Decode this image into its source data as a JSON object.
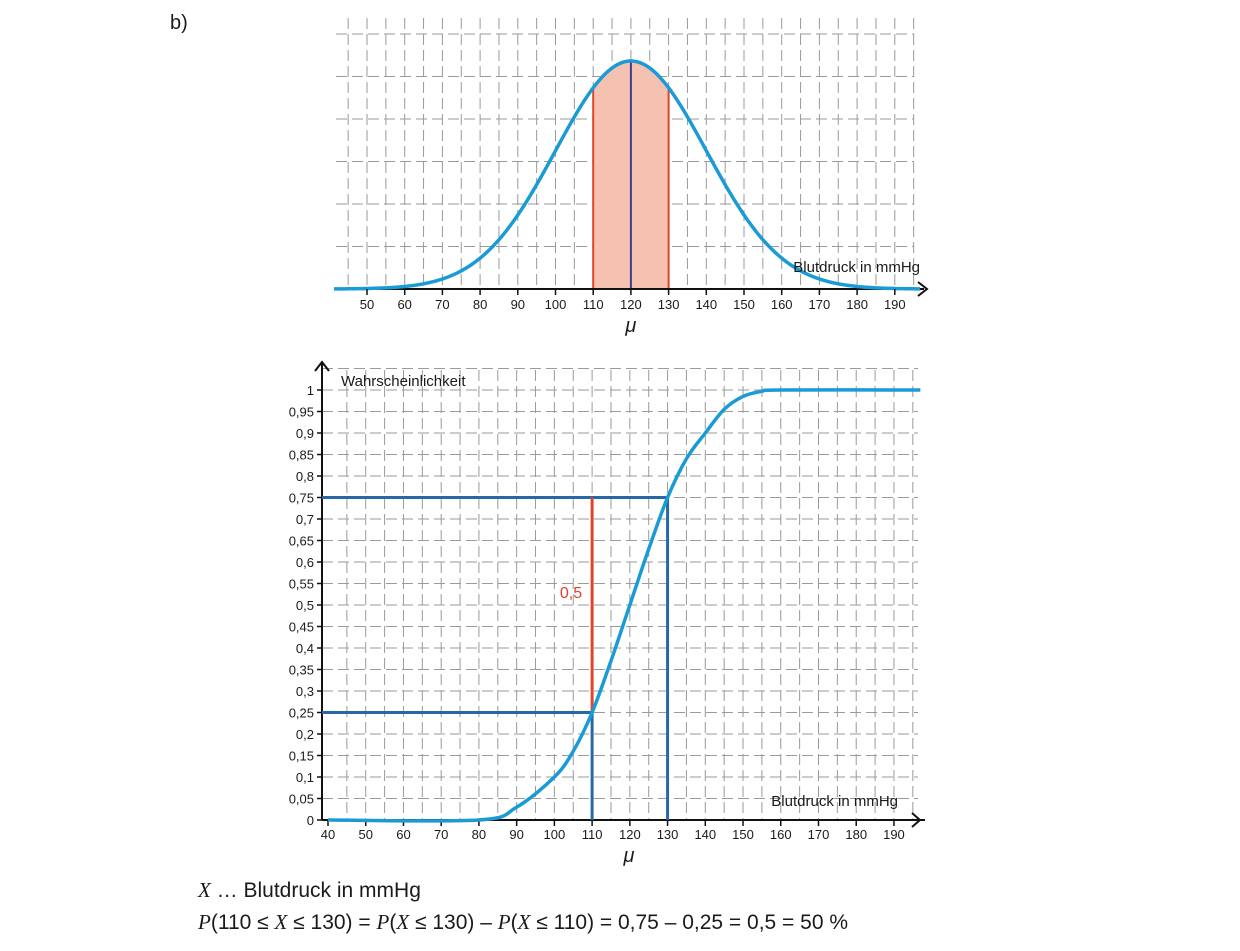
{
  "part_label": "b)",
  "chart_data": [
    {
      "type": "line",
      "curve": "normal density",
      "mean": 120,
      "sd": 20,
      "x_tick_labels": [
        "50",
        "60",
        "70",
        "80",
        "90",
        "100",
        "110",
        "120",
        "130",
        "140",
        "150",
        "160",
        "170",
        "180",
        "190"
      ],
      "xlabel": "Blutdruck in mmHg",
      "mean_label": "μ",
      "shaded_interval": [
        110,
        130
      ],
      "shade_color": "#f5c2b2",
      "line_color": "#1a9bd6",
      "grid": "dashed"
    },
    {
      "type": "line",
      "curve": "cumulative distribution",
      "x_tick_labels": [
        "40",
        "50",
        "60",
        "70",
        "80",
        "90",
        "100",
        "110",
        "120",
        "130",
        "140",
        "150",
        "160",
        "170",
        "180",
        "190"
      ],
      "xlim": [
        40,
        195
      ],
      "y_tick_labels": [
        "0",
        "0,05",
        "0,1",
        "0,15",
        "0,2",
        "0,25",
        "0,3",
        "0,35",
        "0,4",
        "0,45",
        "0,5",
        "0,55",
        "0,6",
        "0,65",
        "0,7",
        "0,75",
        "0,8",
        "0,85",
        "0,9",
        "0,95",
        "1"
      ],
      "ylim": [
        0,
        1
      ],
      "xlabel": "Blutdruck in mmHg",
      "ylabel": "Wahrscheinlichkeit",
      "mean_label": "μ",
      "curve_points": [
        [
          40,
          0
        ],
        [
          80,
          0
        ],
        [
          90,
          0.03
        ],
        [
          100,
          0.1
        ],
        [
          105,
          0.16
        ],
        [
          110,
          0.25
        ],
        [
          115,
          0.37
        ],
        [
          120,
          0.5
        ],
        [
          125,
          0.63
        ],
        [
          130,
          0.75
        ],
        [
          135,
          0.84
        ],
        [
          140,
          0.9
        ],
        [
          145,
          0.955
        ],
        [
          150,
          0.985
        ],
        [
          155,
          0.997
        ],
        [
          160,
          1
        ],
        [
          197,
          1
        ]
      ],
      "reference_lines": [
        {
          "x": 110,
          "y": 0.25,
          "color": "#2868a8"
        },
        {
          "x": 130,
          "y": 0.75,
          "color": "#2868a8"
        }
      ],
      "difference": {
        "x": 110,
        "from": 0.25,
        "to": 0.75,
        "label": "0,5",
        "color": "#e0442a"
      },
      "line_color": "#1a9bd6",
      "grid": "dashed"
    }
  ],
  "solution": {
    "var_name": "X",
    "definition": " … Blutdruck in mmHg",
    "line2": {
      "p1": "P",
      "a": "(110 ≤ ",
      "x1": "X",
      "b": " ≤ 130) = ",
      "p2": "P",
      "c": "(",
      "x2": "X",
      "d": " ≤ 130) – ",
      "p3": "P",
      "e": "(",
      "x3": "X",
      "f": " ≤ 110) = 0,75 – 0,25 = 0,5 = 50 %"
    }
  }
}
